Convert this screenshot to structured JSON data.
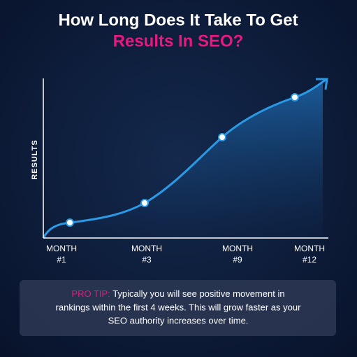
{
  "header": {
    "title_line1": "How Long Does It Take To Get",
    "title_line2": "Results In SEO?"
  },
  "graph": {
    "y_label": "RESULTS",
    "x_labels": [
      [
        "MONTH",
        "#1"
      ],
      [
        "MONTH",
        "#3"
      ],
      [
        "MONTH",
        "#9"
      ],
      [
        "MONTH",
        "#12"
      ]
    ]
  },
  "tip": {
    "label": "PRO TIP:",
    "lines": [
      "Typically you will see positive movement in",
      "rankings within the first 4 weeks. This will grow faster as your",
      "SEO authority increases over time."
    ]
  }
}
